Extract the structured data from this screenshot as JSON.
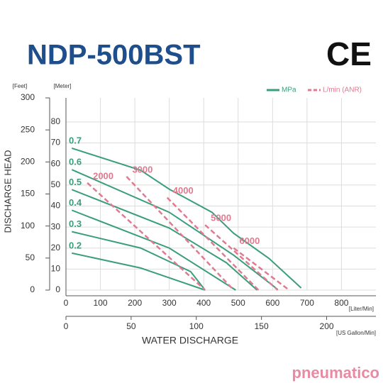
{
  "chart_data": {
    "type": "line",
    "title": "NDP-500BST",
    "mark": "CE",
    "brand": "pneumatico",
    "xlabel": "WATER DISCHARGE",
    "ylabel": "DISCHARGE HEAD",
    "x_unit": "[Liter/Min]",
    "x2_unit": "[US Gallon/Min]",
    "y_unit": "[Meter]",
    "y2_unit": "[Feet]",
    "xlim": [
      0,
      900
    ],
    "xticks": [
      0,
      100,
      200,
      300,
      400,
      500,
      600,
      700,
      800
    ],
    "x2lim": [
      0,
      237.8
    ],
    "x2ticks": [
      0,
      50,
      100,
      150,
      200
    ],
    "ylim": [
      0,
      91.44
    ],
    "yticks": [
      0,
      10,
      20,
      30,
      40,
      50,
      60,
      70,
      80
    ],
    "y2lim": [
      0,
      300
    ],
    "y2ticks": [
      0,
      50,
      100,
      150,
      200,
      250,
      300
    ],
    "grid": true,
    "legend": [
      {
        "label": "MPa",
        "color": "#3a9e7c",
        "dashed": false
      },
      {
        "label": "L/min (ANR)",
        "color": "#e07a90",
        "dashed": true
      }
    ],
    "series": [
      {
        "name": "0.7",
        "color": "#3a9e7c",
        "dashed": false,
        "x": [
          17,
          217,
          300,
          424,
          487,
          590,
          683
        ],
        "values": [
          67.5,
          57,
          48,
          37,
          27,
          15,
          1
        ]
      },
      {
        "name": "0.6",
        "color": "#3a9e7c",
        "dashed": false,
        "x": [
          17,
          300,
          487,
          615
        ],
        "values": [
          57.3,
          37,
          16.6,
          0.3
        ]
      },
      {
        "name": "0.5",
        "color": "#3a9e7c",
        "dashed": false,
        "x": [
          17,
          300,
          466,
          555
        ],
        "values": [
          47.8,
          29.5,
          13,
          0
        ]
      },
      {
        "name": "0.4",
        "color": "#3a9e7c",
        "dashed": false,
        "x": [
          17,
          300,
          493
        ],
        "values": [
          38,
          20,
          0
        ]
      },
      {
        "name": "0.3",
        "color": "#3a9e7c",
        "dashed": false,
        "x": [
          17,
          217,
          362,
          404
        ],
        "values": [
          27.8,
          20,
          8.8,
          0
        ]
      },
      {
        "name": "0.2",
        "color": "#3a9e7c",
        "dashed": false,
        "x": [
          17,
          217,
          404
        ],
        "values": [
          17.6,
          10.5,
          0
        ]
      },
      {
        "name": "2000",
        "color": "#e07a90",
        "dashed": true,
        "x": [
          62,
          404
        ],
        "values": [
          51,
          0
        ]
      },
      {
        "name": "3000",
        "color": "#e07a90",
        "dashed": true,
        "x": [
          176,
          487
        ],
        "values": [
          54,
          0
        ]
      },
      {
        "name": "4000",
        "color": "#e07a90",
        "dashed": true,
        "x": [
          294,
          559
        ],
        "values": [
          44,
          0
        ]
      },
      {
        "name": "5000",
        "color": "#e07a90",
        "dashed": true,
        "x": [
          404,
          615
        ],
        "values": [
          31,
          0
        ]
      },
      {
        "name": "6000",
        "color": "#e07a90",
        "dashed": true,
        "x": [
          487,
          648
        ],
        "values": [
          20,
          0
        ]
      }
    ]
  }
}
